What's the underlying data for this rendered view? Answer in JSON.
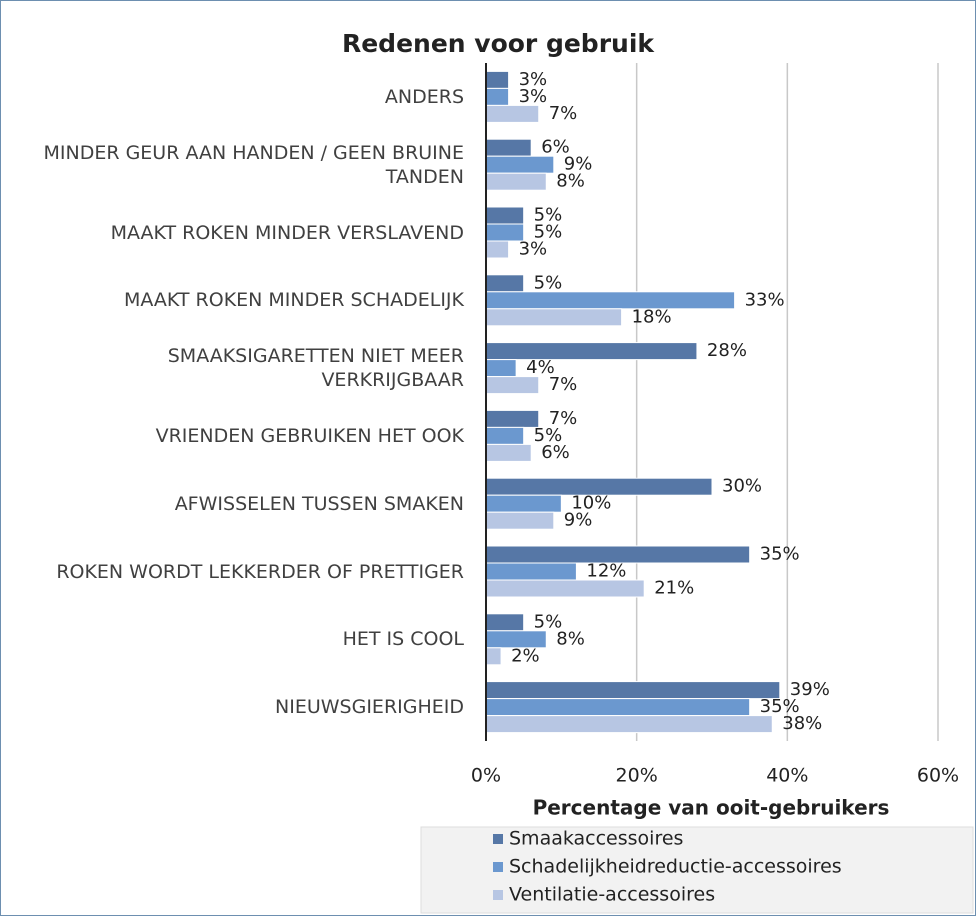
{
  "chart_data": {
    "type": "hbar",
    "title": "Redenen voor gebruik",
    "x_label": "Percentage van ooit-gebruikers",
    "categories": [
      "ANDERS",
      "MINDER GEUR AAN HANDEN / GEEN BRUINE TANDEN",
      "MAAKT ROKEN MINDER VERSLAVEND",
      "MAAKT ROKEN MINDER SCHADELIJK",
      "SMAAKSIGARETTEN NIET MEER VERKRIJGBAAR",
      "VRIENDEN GEBRUIKEN HET OOK",
      "AFWISSELEN TUSSEN SMAKEN",
      "ROKEN WORDT LEKKERDER OF PRETTIGER",
      "HET IS COOL",
      "NIEUWSGIERIGHEID"
    ],
    "series": [
      {
        "name": "Smaakaccessoires",
        "color": "#5677a6",
        "values": [
          3,
          6,
          5,
          5,
          28,
          7,
          30,
          35,
          5,
          39
        ],
        "value_labels": [
          "3%",
          "6%",
          "5%",
          "5%",
          "28%",
          "7%",
          "30%",
          "35%",
          "5%",
          "39%"
        ]
      },
      {
        "name": "Schadelijkheidreductie-accessoires",
        "color": "#6b98cf",
        "values": [
          3,
          9,
          5,
          33,
          4,
          5,
          10,
          12,
          8,
          35
        ],
        "value_labels": [
          "3%",
          "9%",
          "5%",
          "33%",
          "4%",
          "5%",
          "10%",
          "12%",
          "8%",
          "35%"
        ]
      },
      {
        "name": "Ventilatie-accessoires",
        "color": "#b7c6e3",
        "values": [
          7,
          8,
          3,
          18,
          7,
          6,
          9,
          21,
          2,
          38
        ],
        "value_labels": [
          "7%",
          "8%",
          "3%",
          "18%",
          "7%",
          "6%",
          "9%",
          "21%",
          "2%",
          "38%"
        ]
      }
    ],
    "xlim": [
      0,
      60
    ],
    "xticks": [
      {
        "value": 0,
        "label": "0%"
      },
      {
        "value": 20,
        "label": "20%"
      },
      {
        "value": 40,
        "label": "40%"
      },
      {
        "value": 60,
        "label": "60%"
      }
    ],
    "grid": true,
    "legend": "bottom-right"
  }
}
